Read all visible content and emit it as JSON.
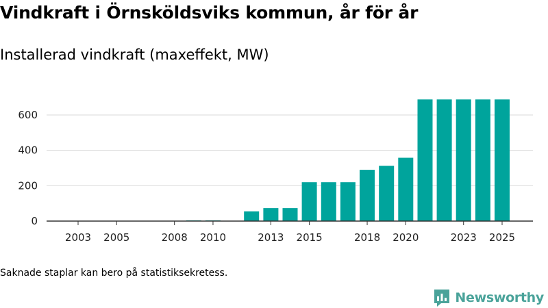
{
  "title": "Vindkraft i Örnsköldsviks kommun, år för år",
  "subtitle": "Installerad vindkraft (maxeffekt, MW)",
  "note": "Saknade staplar kan bero på statistiksekretess.",
  "brand": {
    "name": "Newsworthy",
    "icon": "chart-bubble-icon",
    "color": "#4aa39a"
  },
  "colors": {
    "bar": "#00a49c",
    "grid": "#d9d9d9",
    "axis": "#333333"
  },
  "chart_data": {
    "type": "bar",
    "title": "Installerad vindkraft (maxeffekt, MW)",
    "xlabel": "",
    "ylabel": "",
    "ylim": [
      0,
      700
    ],
    "yticks": [
      0,
      200,
      400,
      600
    ],
    "categories": [
      "2003",
      "2004",
      "2005",
      "2006",
      "2007",
      "2008",
      "2009",
      "2010",
      "2011",
      "2012",
      "2013",
      "2014",
      "2015",
      "2016",
      "2017",
      "2018",
      "2019",
      "2020",
      "2021",
      "2022",
      "2023",
      "2024",
      "2025"
    ],
    "values": [
      0,
      0,
      0,
      0,
      0,
      0,
      4,
      4,
      0,
      55,
      73,
      73,
      220,
      220,
      220,
      290,
      313,
      358,
      688,
      688,
      688,
      688,
      688
    ],
    "xtick_labels": [
      "2003",
      "2005",
      "2008",
      "2010",
      "2013",
      "2015",
      "2018",
      "2020",
      "2023",
      "2025"
    ],
    "grid": true
  }
}
